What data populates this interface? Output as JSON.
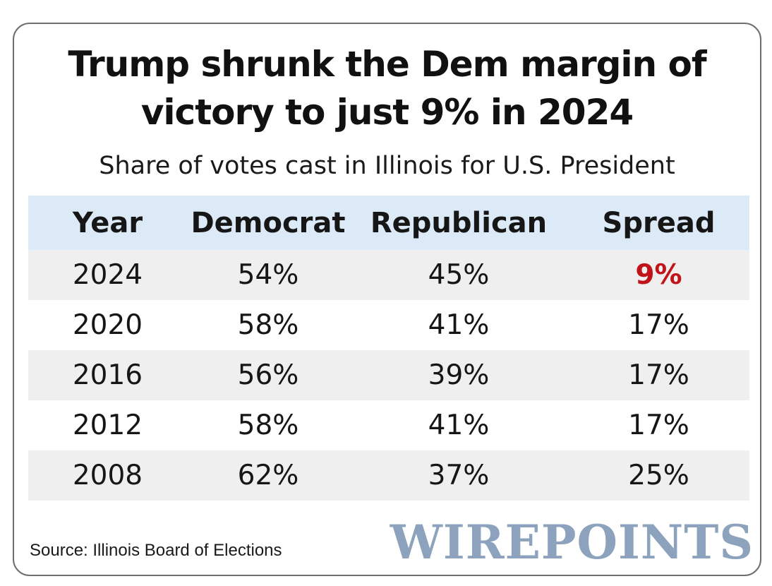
{
  "title_line1": "Trump shrunk the Dem margin of",
  "title_line2": "victory to just 9% in 2024",
  "subtitle": "Share of votes cast in Illinois for U.S. President",
  "source": "Source: Illinois Board of Elections",
  "logo_text": "WIREPOINTS",
  "colors": {
    "header_bg": "#dce9f6",
    "shade_bg": "#efefef",
    "highlight": "#c0141a",
    "logo": "#8da3bd"
  },
  "chart_data": {
    "type": "table",
    "title": "Trump shrunk the Dem margin of victory to just 9% in 2024",
    "subtitle": "Share of votes cast in Illinois for U.S. President",
    "columns": [
      "Year",
      "Democrat",
      "Republican",
      "Spread"
    ],
    "rows": [
      [
        "2024",
        "54%",
        "45%",
        "9%"
      ],
      [
        "2020",
        "58%",
        "41%",
        "17%"
      ],
      [
        "2016",
        "56%",
        "39%",
        "17%"
      ],
      [
        "2012",
        "58%",
        "41%",
        "17%"
      ],
      [
        "2008",
        "62%",
        "37%",
        "25%"
      ]
    ],
    "highlight": {
      "row": 0,
      "col": 3,
      "color": "#c0141a"
    }
  }
}
